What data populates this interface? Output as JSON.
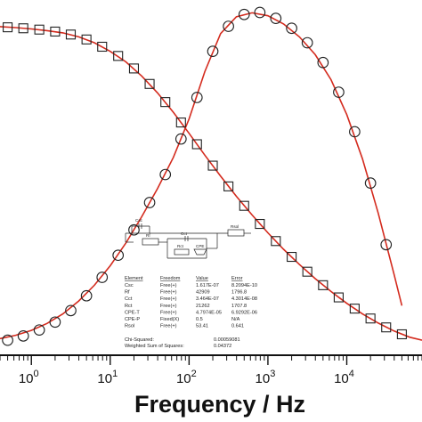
{
  "chart_data": {
    "type": "scatter",
    "xlabel": "Frequency / Hz",
    "xscale": "log",
    "xlim": [
      0.4,
      90000
    ],
    "ylim": [
      0,
      1
    ],
    "x_ticks": [
      {
        "value": 1,
        "base": "10",
        "exp": "0"
      },
      {
        "value": 10,
        "base": "10",
        "exp": "1"
      },
      {
        "value": 100,
        "base": "10",
        "exp": "2"
      },
      {
        "value": 1000,
        "base": "10",
        "exp": "3"
      },
      {
        "value": 10000,
        "base": "10",
        "exp": "4"
      }
    ],
    "series": [
      {
        "marker": "square",
        "color": "#222222",
        "x": [
          0.5,
          0.79,
          1.26,
          2.0,
          3.16,
          5.0,
          7.9,
          12.6,
          20.0,
          31.6,
          50.0,
          79.0,
          126,
          200,
          316,
          500,
          790,
          1260,
          2000,
          3160,
          5000,
          7900,
          12600,
          20000,
          31600,
          50000
        ],
        "y": [
          0.955,
          0.952,
          0.948,
          0.942,
          0.933,
          0.918,
          0.896,
          0.868,
          0.83,
          0.783,
          0.728,
          0.666,
          0.6,
          0.535,
          0.472,
          0.413,
          0.358,
          0.306,
          0.258,
          0.213,
          0.172,
          0.135,
          0.101,
          0.071,
          0.044,
          0.023
        ]
      },
      {
        "marker": "circle",
        "color": "#222222",
        "x": [
          0.5,
          0.79,
          1.26,
          2.0,
          3.16,
          5.0,
          7.9,
          12.6,
          20.0,
          31.6,
          50.0,
          79.0,
          126,
          200,
          316,
          500,
          790,
          1260,
          2000,
          3160,
          5000,
          7900,
          12600,
          20000,
          31600
        ],
        "y": [
          0.005,
          0.018,
          0.036,
          0.06,
          0.095,
          0.14,
          0.196,
          0.263,
          0.34,
          0.423,
          0.508,
          0.616,
          0.742,
          0.882,
          0.958,
          0.994,
          1.0,
          0.982,
          0.952,
          0.908,
          0.848,
          0.758,
          0.638,
          0.482,
          0.295
        ]
      }
    ],
    "fit_curves": [
      {
        "color": "#d42b1e",
        "x": [
          0.4,
          0.63,
          1.0,
          1.58,
          2.51,
          3.98,
          6.3,
          10.0,
          15.8,
          25.1,
          39.8,
          63.1,
          100,
          158,
          251,
          398,
          631,
          1000,
          1580,
          2510,
          3980,
          6310,
          10000,
          15800,
          25100,
          39800,
          63100,
          90000
        ],
        "y": [
          0.957,
          0.954,
          0.95,
          0.945,
          0.938,
          0.926,
          0.908,
          0.882,
          0.85,
          0.807,
          0.756,
          0.697,
          0.633,
          0.567,
          0.503,
          0.442,
          0.385,
          0.331,
          0.281,
          0.235,
          0.192,
          0.153,
          0.117,
          0.085,
          0.057,
          0.033,
          0.014,
          0.005
        ]
      },
      {
        "color": "#d42b1e",
        "x": [
          0.4,
          0.63,
          1.0,
          1.58,
          2.51,
          3.98,
          6.3,
          10.0,
          15.8,
          25.1,
          39.8,
          63.1,
          100,
          158,
          251,
          398,
          631,
          1000,
          1580,
          2510,
          3980,
          6310,
          10000,
          15800,
          25100,
          39800,
          50000
        ],
        "y": [
          0.01,
          0.02,
          0.035,
          0.056,
          0.085,
          0.124,
          0.172,
          0.231,
          0.3,
          0.38,
          0.465,
          0.56,
          0.677,
          0.82,
          0.936,
          0.987,
          0.999,
          0.99,
          0.965,
          0.926,
          0.872,
          0.796,
          0.69,
          0.556,
          0.39,
          0.205,
          0.11
        ]
      }
    ],
    "circuit": {
      "labels": [
        "Csc",
        "Rf",
        "Cct",
        "Rct",
        "CPE",
        "Rsol"
      ]
    },
    "fit_table": {
      "headers": [
        "Element",
        "Freedom",
        "Value",
        "Error"
      ],
      "rows": [
        [
          "Csc",
          "Free(+)",
          "1.617E-07",
          "8.2094E-10"
        ],
        [
          "Rf",
          "Free(+)",
          "42909",
          "1796.8"
        ],
        [
          "Cct",
          "Free(+)",
          "3.464E-07",
          "4.3014E-08"
        ],
        [
          "Rct",
          "Free(+)",
          "21262",
          "1707.8"
        ],
        [
          "CPE-T",
          "Free(+)",
          "4.7974E-05",
          "6.9292E-06"
        ],
        [
          "CPE-P",
          "Fixed(X)",
          "0.5",
          "N/A"
        ],
        [
          "Rsol",
          "Free(+)",
          "53.41",
          "0.641"
        ]
      ],
      "chi_squared_label": "Chi-Squared:",
      "chi_squared": "0.00059081",
      "wss_label": "Weighted Sum of Squares:",
      "wss": "0.04372"
    }
  }
}
